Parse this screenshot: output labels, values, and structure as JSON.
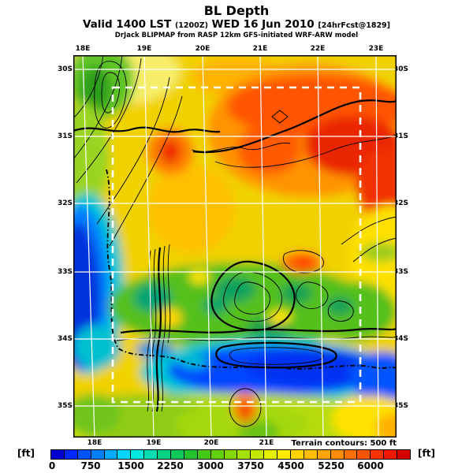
{
  "header": {
    "title": "BL Depth",
    "valid_line": {
      "prefix": "Valid 1400 LST",
      "time_small": "(1200Z)",
      "date": "WED 16 Jun 2010",
      "fcst_small": "[24hrFcst@1829]"
    },
    "attribution": "DrJack BLIPMAP from RASP 12km GFS-initiated WRF-ARW model"
  },
  "map": {
    "top_lon_labels": [
      {
        "text": "18E"
      },
      {
        "text": "19E"
      },
      {
        "text": "20E"
      },
      {
        "text": "21E"
      },
      {
        "text": "22E"
      },
      {
        "text": "23E"
      }
    ],
    "bottom_lon_labels": [
      {
        "text": "18E"
      },
      {
        "text": "19E"
      },
      {
        "text": "20E"
      },
      {
        "text": "21E"
      }
    ],
    "left_lat_labels": [
      {
        "text": "30S"
      },
      {
        "text": "31S"
      },
      {
        "text": "32S"
      },
      {
        "text": "33S"
      },
      {
        "text": "34S"
      },
      {
        "text": "35S"
      }
    ],
    "right_lat_labels": [
      {
        "text": "30S"
      },
      {
        "text": "31S"
      },
      {
        "text": "32S"
      },
      {
        "text": "33S"
      },
      {
        "text": "34S"
      },
      {
        "text": "35S"
      }
    ],
    "terrain_note": "Terrain contours: 500 ft"
  },
  "colorbar": {
    "unit_left": "[ft]",
    "unit_right": "[ft]",
    "ticks": [
      "0",
      "750",
      "1500",
      "2250",
      "3000",
      "3750",
      "4500",
      "5250",
      "6000"
    ],
    "segment_ft_step": 250,
    "segment_colors": [
      "#0000d0",
      "#0028ff",
      "#0054ff",
      "#0080ff",
      "#00aaff",
      "#00d4ff",
      "#00e8e0",
      "#00ddb0",
      "#00d284",
      "#0cc858",
      "#26c22e",
      "#44c816",
      "#62d00a",
      "#84d800",
      "#a4e000",
      "#c4e800",
      "#e4f000",
      "#ffec00",
      "#ffd400",
      "#ffbc00",
      "#ffa400",
      "#ff8c00",
      "#ff7000",
      "#ff5400",
      "#ff3400",
      "#f01800",
      "#d40000"
    ]
  }
}
